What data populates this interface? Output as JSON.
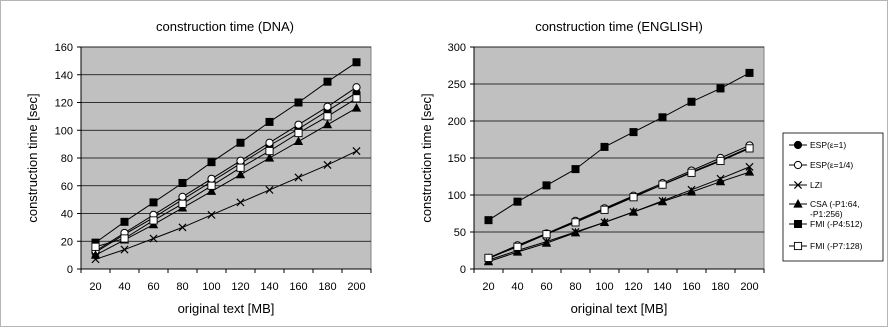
{
  "chart_data": [
    {
      "type": "line",
      "title": "construction  time (DNA)",
      "xlabel": "original text [MB]",
      "ylabel": "construction time [sec]",
      "x": [
        20,
        40,
        60,
        80,
        100,
        120,
        140,
        160,
        180,
        200
      ],
      "xticks": [
        "20",
        "40",
        "60",
        "80",
        "100",
        "120",
        "140",
        "160",
        "180",
        "200"
      ],
      "ylim": [
        0,
        160
      ],
      "yticks": [
        "0",
        "20",
        "40",
        "60",
        "80",
        "100",
        "120",
        "140",
        "160"
      ],
      "grid": true,
      "plot_background": "#c0c0c0",
      "series": [
        {
          "name": "ESP(ε=1)",
          "marker": "circle-filled",
          "values": [
            12,
            25,
            37,
            50,
            63,
            76,
            89,
            101,
            114,
            127
          ]
        },
        {
          "name": "ESP(ε=1/4)",
          "marker": "circle-open",
          "values": [
            13,
            26,
            39,
            52,
            65,
            78,
            91,
            104,
            117,
            131
          ]
        },
        {
          "name": "LZI",
          "marker": "x",
          "values": [
            7,
            14,
            22,
            30,
            39,
            48,
            57,
            66,
            75,
            85
          ]
        },
        {
          "name": "CSA (-P1:64, -P1:256)",
          "marker": "triangle-filled",
          "values": [
            10,
            21,
            32,
            44,
            56,
            68,
            80,
            92,
            104,
            116
          ]
        },
        {
          "name": "FMI (-P4:512)",
          "marker": "square-filled",
          "values": [
            19,
            34,
            48,
            62,
            77,
            91,
            106,
            120,
            135,
            149
          ]
        },
        {
          "name": "FMI (-P7:128)",
          "marker": "square-open",
          "values": [
            16,
            22,
            35,
            47,
            60,
            73,
            85,
            98,
            110,
            123
          ]
        }
      ]
    },
    {
      "type": "line",
      "title": "construction time (ENGLISH)",
      "xlabel": "original text [MB]",
      "ylabel": "construction time [sec]",
      "x": [
        20,
        40,
        60,
        80,
        100,
        120,
        140,
        160,
        180,
        200
      ],
      "xticks": [
        "20",
        "40",
        "60",
        "80",
        "100",
        "120",
        "140",
        "160",
        "180",
        "200"
      ],
      "ylim": [
        0,
        300
      ],
      "yticks": [
        "0",
        "50",
        "100",
        "150",
        "200",
        "250",
        "300"
      ],
      "grid": true,
      "plot_background": "#c0c0c0",
      "series": [
        {
          "name": "ESP(ε=1)",
          "marker": "circle-filled",
          "values": [
            14,
            31,
            47,
            64,
            81,
            98,
            114,
            131,
            147,
            164
          ]
        },
        {
          "name": "ESP(ε=1/4)",
          "marker": "circle-open",
          "values": [
            15,
            32,
            48,
            65,
            82,
            99,
            116,
            133,
            150,
            167
          ]
        },
        {
          "name": "LZI",
          "marker": "x",
          "values": [
            12,
            25,
            37,
            50,
            63,
            77,
            92,
            107,
            122,
            138
          ]
        },
        {
          "name": "CSA (-P1:64, -P1:256)",
          "marker": "triangle-filled",
          "values": [
            10,
            23,
            35,
            49,
            63,
            77,
            91,
            104,
            118,
            131
          ]
        },
        {
          "name": "FMI (-P4:512)",
          "marker": "square-filled",
          "values": [
            66,
            91,
            113,
            135,
            165,
            185,
            205,
            226,
            244,
            265
          ]
        },
        {
          "name": "FMI (-P7:128)",
          "marker": "square-open",
          "values": [
            15,
            30,
            47,
            63,
            80,
            97,
            114,
            130,
            146,
            163
          ]
        }
      ]
    }
  ],
  "legend": {
    "placement": "right",
    "entries": [
      {
        "marker": "circle-filled",
        "lines": [
          "ESP(ε=1)"
        ]
      },
      {
        "marker": "circle-open",
        "lines": [
          "ESP(ε=1/4)"
        ]
      },
      {
        "marker": "x",
        "lines": [
          "LZI"
        ]
      },
      {
        "marker": "triangle-filled",
        "lines": [
          "CSA (-P1:64,",
          "-P1:256)"
        ]
      },
      {
        "marker": "square-filled",
        "lines": [
          "FMI (-P4:512)"
        ]
      },
      {
        "marker": "square-open",
        "lines": [
          "FMI (-P7:128)"
        ]
      }
    ]
  }
}
